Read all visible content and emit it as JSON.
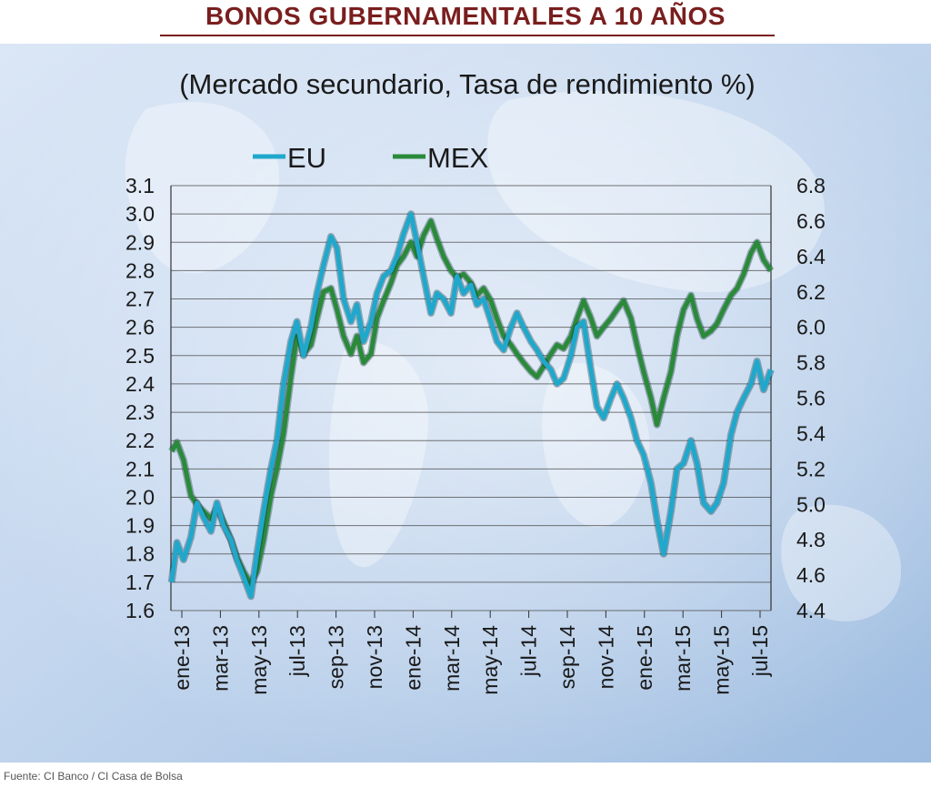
{
  "header": {
    "title": "BONOS GUBERNAMENTALES A 10 AÑOS"
  },
  "footer": {
    "source": "Fuente: CI Banco / CI Casa de Bolsa"
  },
  "colors": {
    "title": "#7a1e1e",
    "eu": "#1fa8cc",
    "mex": "#2a8a3a",
    "grid": "#4a4a4a"
  },
  "chart_data": {
    "type": "line",
    "subtitle": "(Mercado secundario, Tasa de rendimiento %)",
    "legend_position": "top-left",
    "grid": true,
    "x_ticks": [
      "ene-13",
      "mar-13",
      "may-13",
      "jul-13",
      "sep-13",
      "nov-13",
      "ene-14",
      "mar-14",
      "may-14",
      "jul-14",
      "sep-14",
      "nov-14",
      "ene-15",
      "mar-15",
      "may-15",
      "jul-15"
    ],
    "x_range": [
      "2013-01",
      "2015-07"
    ],
    "y_left": {
      "ticks": [
        "1.6",
        "1.7",
        "1.8",
        "1.9",
        "2.0",
        "2.1",
        "2.2",
        "2.3",
        "2.4",
        "2.5",
        "2.6",
        "2.7",
        "2.8",
        "2.9",
        "3.0",
        "3.1"
      ],
      "lim": [
        1.6,
        3.1
      ]
    },
    "y_right": {
      "ticks": [
        "4.4",
        "4.6",
        "4.8",
        "5.0",
        "5.2",
        "5.4",
        "5.6",
        "5.8",
        "6.0",
        "6.2",
        "6.4",
        "6.6",
        "6.8"
      ],
      "lim": [
        4.4,
        6.8
      ]
    },
    "series": [
      {
        "name": "EU",
        "axis": "left",
        "color": "#1fa8cc",
        "points": [
          [
            "2013-01-02",
            1.7
          ],
          [
            "2013-01-10",
            1.84
          ],
          [
            "2013-01-20",
            1.78
          ],
          [
            "2013-02-01",
            1.86
          ],
          [
            "2013-02-10",
            1.98
          ],
          [
            "2013-02-20",
            1.93
          ],
          [
            "2013-03-01",
            1.88
          ],
          [
            "2013-03-10",
            1.98
          ],
          [
            "2013-03-20",
            1.9
          ],
          [
            "2013-04-01",
            1.85
          ],
          [
            "2013-04-10",
            1.78
          ],
          [
            "2013-04-20",
            1.72
          ],
          [
            "2013-05-01",
            1.65
          ],
          [
            "2013-05-10",
            1.8
          ],
          [
            "2013-05-20",
            1.95
          ],
          [
            "2013-06-01",
            2.1
          ],
          [
            "2013-06-10",
            2.2
          ],
          [
            "2013-06-20",
            2.4
          ],
          [
            "2013-07-01",
            2.55
          ],
          [
            "2013-07-10",
            2.62
          ],
          [
            "2013-07-20",
            2.5
          ],
          [
            "2013-08-01",
            2.6
          ],
          [
            "2013-08-10",
            2.72
          ],
          [
            "2013-08-20",
            2.82
          ],
          [
            "2013-09-01",
            2.92
          ],
          [
            "2013-09-10",
            2.88
          ],
          [
            "2013-09-20",
            2.7
          ],
          [
            "2013-10-01",
            2.62
          ],
          [
            "2013-10-10",
            2.68
          ],
          [
            "2013-10-20",
            2.55
          ],
          [
            "2013-11-01",
            2.62
          ],
          [
            "2013-11-10",
            2.72
          ],
          [
            "2013-11-20",
            2.78
          ],
          [
            "2013-12-01",
            2.8
          ],
          [
            "2013-12-10",
            2.85
          ],
          [
            "2013-12-20",
            2.93
          ],
          [
            "2014-01-01",
            3.0
          ],
          [
            "2014-01-10",
            2.9
          ],
          [
            "2014-01-20",
            2.78
          ],
          [
            "2014-02-01",
            2.65
          ],
          [
            "2014-02-10",
            2.72
          ],
          [
            "2014-02-20",
            2.7
          ],
          [
            "2014-03-01",
            2.65
          ],
          [
            "2014-03-10",
            2.78
          ],
          [
            "2014-03-20",
            2.72
          ],
          [
            "2014-04-01",
            2.75
          ],
          [
            "2014-04-10",
            2.68
          ],
          [
            "2014-04-20",
            2.7
          ],
          [
            "2014-05-01",
            2.62
          ],
          [
            "2014-05-10",
            2.55
          ],
          [
            "2014-05-20",
            2.52
          ],
          [
            "2014-06-01",
            2.6
          ],
          [
            "2014-06-10",
            2.65
          ],
          [
            "2014-06-20",
            2.6
          ],
          [
            "2014-07-01",
            2.55
          ],
          [
            "2014-07-10",
            2.52
          ],
          [
            "2014-07-20",
            2.48
          ],
          [
            "2014-08-01",
            2.45
          ],
          [
            "2014-08-10",
            2.4
          ],
          [
            "2014-08-20",
            2.42
          ],
          [
            "2014-09-01",
            2.5
          ],
          [
            "2014-09-10",
            2.6
          ],
          [
            "2014-09-20",
            2.62
          ],
          [
            "2014-10-01",
            2.45
          ],
          [
            "2014-10-10",
            2.32
          ],
          [
            "2014-10-20",
            2.28
          ],
          [
            "2014-11-01",
            2.35
          ],
          [
            "2014-11-10",
            2.4
          ],
          [
            "2014-11-20",
            2.35
          ],
          [
            "2014-12-01",
            2.28
          ],
          [
            "2014-12-10",
            2.2
          ],
          [
            "2014-12-20",
            2.15
          ],
          [
            "2015-01-01",
            2.05
          ],
          [
            "2015-01-10",
            1.92
          ],
          [
            "2015-01-20",
            1.8
          ],
          [
            "2015-02-01",
            1.95
          ],
          [
            "2015-02-10",
            2.1
          ],
          [
            "2015-02-20",
            2.12
          ],
          [
            "2015-03-01",
            2.2
          ],
          [
            "2015-03-10",
            2.12
          ],
          [
            "2015-03-20",
            1.98
          ],
          [
            "2015-04-01",
            1.95
          ],
          [
            "2015-04-10",
            1.98
          ],
          [
            "2015-04-20",
            2.05
          ],
          [
            "2015-05-01",
            2.22
          ],
          [
            "2015-05-10",
            2.3
          ],
          [
            "2015-05-20",
            2.35
          ],
          [
            "2015-06-01",
            2.4
          ],
          [
            "2015-06-10",
            2.48
          ],
          [
            "2015-06-20",
            2.38
          ],
          [
            "2015-07-01",
            2.45
          ]
        ]
      },
      {
        "name": "MEX",
        "axis": "right",
        "color": "#2a8a3a",
        "points": [
          [
            "2013-01-02",
            5.3
          ],
          [
            "2013-01-10",
            5.35
          ],
          [
            "2013-01-20",
            5.25
          ],
          [
            "2013-02-01",
            5.05
          ],
          [
            "2013-02-10",
            5.0
          ],
          [
            "2013-02-20",
            4.96
          ],
          [
            "2013-03-01",
            4.92
          ],
          [
            "2013-03-10",
            4.98
          ],
          [
            "2013-03-20",
            4.9
          ],
          [
            "2013-04-01",
            4.8
          ],
          [
            "2013-04-10",
            4.7
          ],
          [
            "2013-04-20",
            4.62
          ],
          [
            "2013-05-01",
            4.55
          ],
          [
            "2013-05-10",
            4.62
          ],
          [
            "2013-05-20",
            4.8
          ],
          [
            "2013-06-01",
            5.05
          ],
          [
            "2013-06-10",
            5.2
          ],
          [
            "2013-06-20",
            5.4
          ],
          [
            "2013-07-01",
            5.72
          ],
          [
            "2013-07-10",
            5.95
          ],
          [
            "2013-07-20",
            5.85
          ],
          [
            "2013-08-01",
            5.9
          ],
          [
            "2013-08-10",
            6.05
          ],
          [
            "2013-08-20",
            6.2
          ],
          [
            "2013-09-01",
            6.22
          ],
          [
            "2013-09-10",
            6.1
          ],
          [
            "2013-09-20",
            5.95
          ],
          [
            "2013-10-01",
            5.85
          ],
          [
            "2013-10-10",
            5.95
          ],
          [
            "2013-10-20",
            5.8
          ],
          [
            "2013-11-01",
            5.85
          ],
          [
            "2013-11-10",
            6.05
          ],
          [
            "2013-11-20",
            6.15
          ],
          [
            "2013-12-01",
            6.25
          ],
          [
            "2013-12-10",
            6.35
          ],
          [
            "2013-12-20",
            6.4
          ],
          [
            "2014-01-01",
            6.48
          ],
          [
            "2014-01-10",
            6.4
          ],
          [
            "2014-01-20",
            6.52
          ],
          [
            "2014-02-01",
            6.6
          ],
          [
            "2014-02-10",
            6.5
          ],
          [
            "2014-02-20",
            6.4
          ],
          [
            "2014-03-01",
            6.32
          ],
          [
            "2014-03-10",
            6.28
          ],
          [
            "2014-03-20",
            6.3
          ],
          [
            "2014-04-01",
            6.25
          ],
          [
            "2014-04-10",
            6.18
          ],
          [
            "2014-04-20",
            6.22
          ],
          [
            "2014-05-01",
            6.15
          ],
          [
            "2014-05-10",
            6.05
          ],
          [
            "2014-05-20",
            5.95
          ],
          [
            "2014-06-01",
            5.9
          ],
          [
            "2014-06-10",
            5.85
          ],
          [
            "2014-06-20",
            5.8
          ],
          [
            "2014-07-01",
            5.75
          ],
          [
            "2014-07-10",
            5.72
          ],
          [
            "2014-07-20",
            5.78
          ],
          [
            "2014-08-01",
            5.85
          ],
          [
            "2014-08-10",
            5.9
          ],
          [
            "2014-08-20",
            5.88
          ],
          [
            "2014-09-01",
            5.95
          ],
          [
            "2014-09-10",
            6.05
          ],
          [
            "2014-09-20",
            6.15
          ],
          [
            "2014-10-01",
            6.05
          ],
          [
            "2014-10-10",
            5.95
          ],
          [
            "2014-10-20",
            6.0
          ],
          [
            "2014-11-01",
            6.05
          ],
          [
            "2014-11-10",
            6.1
          ],
          [
            "2014-11-20",
            6.15
          ],
          [
            "2014-12-01",
            6.05
          ],
          [
            "2014-12-10",
            5.9
          ],
          [
            "2014-12-20",
            5.75
          ],
          [
            "2015-01-01",
            5.6
          ],
          [
            "2015-01-10",
            5.45
          ],
          [
            "2015-01-20",
            5.6
          ],
          [
            "2015-02-01",
            5.75
          ],
          [
            "2015-02-10",
            5.95
          ],
          [
            "2015-02-20",
            6.1
          ],
          [
            "2015-03-01",
            6.18
          ],
          [
            "2015-03-10",
            6.05
          ],
          [
            "2015-03-20",
            5.95
          ],
          [
            "2015-04-01",
            5.98
          ],
          [
            "2015-04-10",
            6.02
          ],
          [
            "2015-04-20",
            6.1
          ],
          [
            "2015-05-01",
            6.18
          ],
          [
            "2015-05-10",
            6.22
          ],
          [
            "2015-05-20",
            6.3
          ],
          [
            "2015-06-01",
            6.42
          ],
          [
            "2015-06-10",
            6.48
          ],
          [
            "2015-06-20",
            6.38
          ],
          [
            "2015-07-01",
            6.32
          ]
        ]
      }
    ]
  }
}
